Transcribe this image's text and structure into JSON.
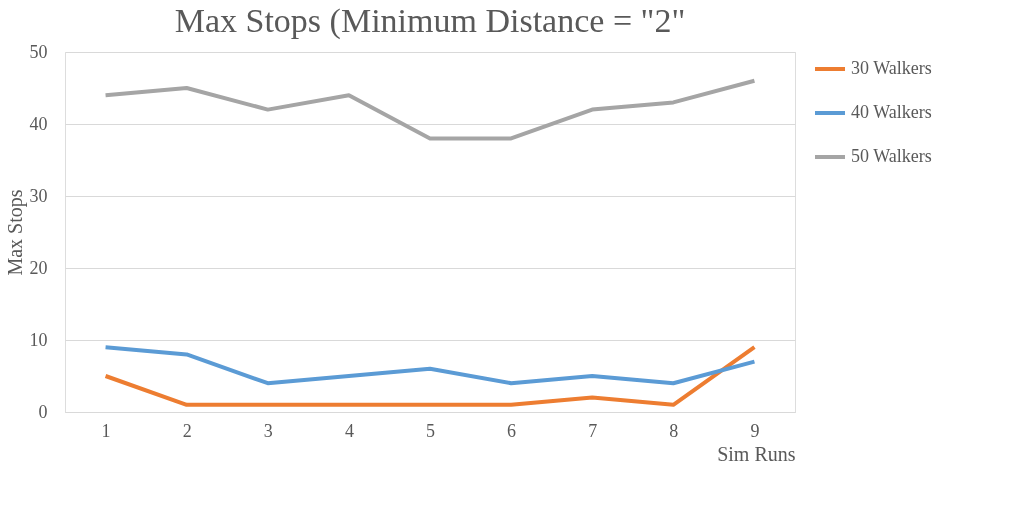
{
  "chart_data": {
    "type": "line",
    "title": "Max Stops (Minimum Distance = \"2\"",
    "xlabel": "Sim Runs",
    "ylabel": "Max Stops",
    "categories": [
      "1",
      "2",
      "3",
      "4",
      "5",
      "6",
      "7",
      "8",
      "9"
    ],
    "series": [
      {
        "name": "30 Walkers",
        "color": "#ed7d31",
        "values": [
          5,
          1,
          1,
          1,
          1,
          1,
          2,
          1,
          9
        ]
      },
      {
        "name": "40 Walkers",
        "color": "#5b9bd5",
        "values": [
          9,
          8,
          4,
          5,
          6,
          4,
          5,
          4,
          7
        ]
      },
      {
        "name": "50 Walkers",
        "color": "#a5a5a5",
        "values": [
          44,
          45,
          42,
          44,
          38,
          38,
          42,
          43,
          46
        ]
      }
    ],
    "ylim": [
      0,
      50
    ],
    "yticks": [
      0,
      10,
      20,
      30,
      40,
      50
    ],
    "grid": "y",
    "legend": "right",
    "marker": "none",
    "line_style": "solid"
  }
}
